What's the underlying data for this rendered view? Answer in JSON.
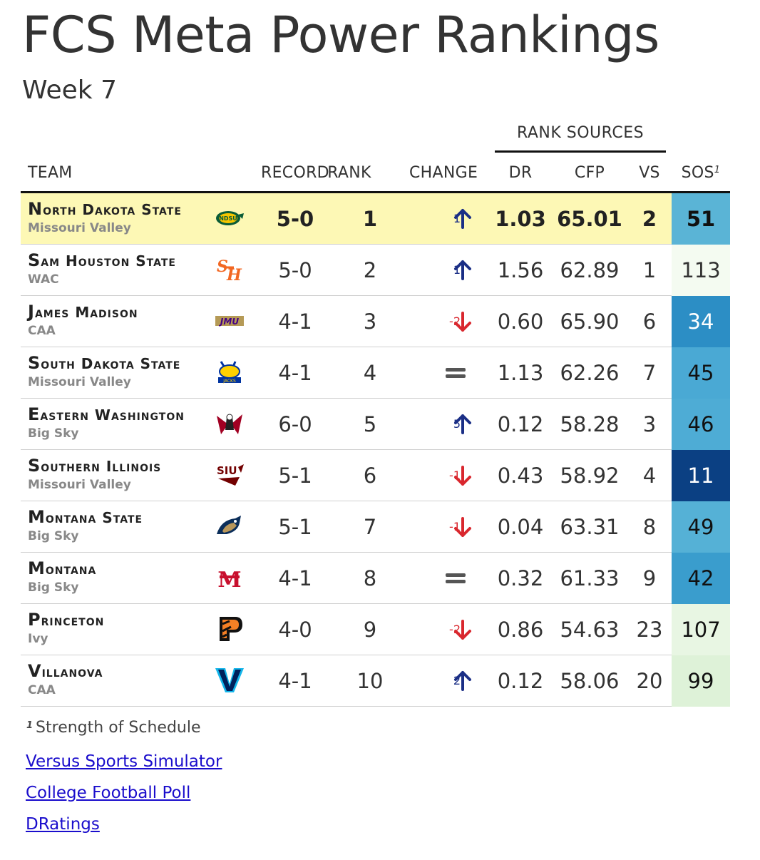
{
  "header": {
    "title": "FCS Meta Power Rankings",
    "subtitle": "Week 7"
  },
  "table": {
    "group_label": "RANK SOURCES",
    "columns": {
      "team": "TEAM",
      "record": "RECORD",
      "rank": "RANK",
      "change": "CHANGE",
      "dr": "DR",
      "cfp": "CFP",
      "vs": "VS",
      "sos": "SOS",
      "sos_note": "1"
    },
    "rows": [
      {
        "team_initial": "N",
        "team_rest": "orth Dakota State",
        "conference": "Missouri Valley",
        "logo_icon": "ndsu-bison-logo-icon",
        "record": "5-0",
        "rank": "1",
        "change": "1",
        "direction": "up",
        "dr": "1.03",
        "cfp": "65.01",
        "vs": "2",
        "sos": "51",
        "sos_color": "#5ab4d6",
        "sos_text_color": "#111111",
        "highlight": true
      },
      {
        "team_initial": "S",
        "team_rest": "am Houston State",
        "conference": "WAC",
        "logo_icon": "shsu-logo-icon",
        "record": "5-0",
        "rank": "2",
        "change": "1",
        "direction": "up",
        "dr": "1.56",
        "cfp": "62.89",
        "vs": "1",
        "sos": "113",
        "sos_color": "#f4fbf1",
        "sos_text_color": "#333333",
        "highlight": false
      },
      {
        "team_initial": "J",
        "team_rest": "ames Madison",
        "conference": "CAA",
        "logo_icon": "jmu-logo-icon",
        "record": "4-1",
        "rank": "3",
        "change": "-2",
        "direction": "down",
        "dr": "0.60",
        "cfp": "65.90",
        "vs": "6",
        "sos": "34",
        "sos_color": "#2c8ec5",
        "sos_text_color": "#ffffff",
        "highlight": false
      },
      {
        "team_initial": "S",
        "team_rest": "outh Dakota State",
        "conference": "Missouri Valley",
        "logo_icon": "sdsu-jackrabbits-logo-icon",
        "record": "4-1",
        "rank": "4",
        "change": "",
        "direction": "same",
        "dr": "1.13",
        "cfp": "62.26",
        "vs": "7",
        "sos": "45",
        "sos_color": "#4aa9d4",
        "sos_text_color": "#111111",
        "highlight": false
      },
      {
        "team_initial": "E",
        "team_rest": "astern Washington",
        "conference": "Big Sky",
        "logo_icon": "ewu-eagle-logo-icon",
        "record": "6-0",
        "rank": "5",
        "change": "5",
        "direction": "up",
        "dr": "0.12",
        "cfp": "58.28",
        "vs": "3",
        "sos": "46",
        "sos_color": "#4eacd5",
        "sos_text_color": "#111111",
        "highlight": false
      },
      {
        "team_initial": "S",
        "team_rest": "outhern Illinois",
        "conference": "Missouri Valley",
        "logo_icon": "siu-saluki-logo-icon",
        "record": "5-1",
        "rank": "6",
        "change": "-1",
        "direction": "down",
        "dr": "0.43",
        "cfp": "58.92",
        "vs": "4",
        "sos": "11",
        "sos_color": "#0b4083",
        "sos_text_color": "#ffffff",
        "highlight": false
      },
      {
        "team_initial": "M",
        "team_rest": "ontana State",
        "conference": "Big Sky",
        "logo_icon": "msu-bobcat-logo-icon",
        "record": "5-1",
        "rank": "7",
        "change": "-1",
        "direction": "down",
        "dr": "0.04",
        "cfp": "63.31",
        "vs": "8",
        "sos": "49",
        "sos_color": "#55b1d6",
        "sos_text_color": "#111111",
        "highlight": false
      },
      {
        "team_initial": "M",
        "team_rest": "ontana",
        "conference": "Big Sky",
        "logo_icon": "montana-griz-logo-icon",
        "record": "4-1",
        "rank": "8",
        "change": "",
        "direction": "same",
        "dr": "0.32",
        "cfp": "61.33",
        "vs": "9",
        "sos": "42",
        "sos_color": "#3a9dcd",
        "sos_text_color": "#111111",
        "highlight": false
      },
      {
        "team_initial": "P",
        "team_rest": "rinceton",
        "conference": "Ivy",
        "logo_icon": "princeton-p-logo-icon",
        "record": "4-0",
        "rank": "9",
        "change": "-2",
        "direction": "down",
        "dr": "0.86",
        "cfp": "54.63",
        "vs": "23",
        "sos": "107",
        "sos_color": "#e8f6e3",
        "sos_text_color": "#111111",
        "highlight": false
      },
      {
        "team_initial": "V",
        "team_rest": "illanova",
        "conference": "CAA",
        "logo_icon": "villanova-v-logo-icon",
        "record": "4-1",
        "rank": "10",
        "change": "2",
        "direction": "up",
        "dr": "0.12",
        "cfp": "58.06",
        "vs": "20",
        "sos": "99",
        "sos_color": "#def2d8",
        "sos_text_color": "#111111",
        "highlight": false
      }
    ]
  },
  "footer": {
    "note_marker": "1",
    "note_text": "Strength of Schedule",
    "links": [
      "Versus Sports Simulator",
      "College Football Poll",
      "DRatings"
    ]
  },
  "colors": {
    "up_arrow": "#1b2f86",
    "down_arrow": "#d9272e",
    "same": "#555555",
    "highlight_row": "#fdf8b5",
    "link": "#1a0dcc"
  }
}
